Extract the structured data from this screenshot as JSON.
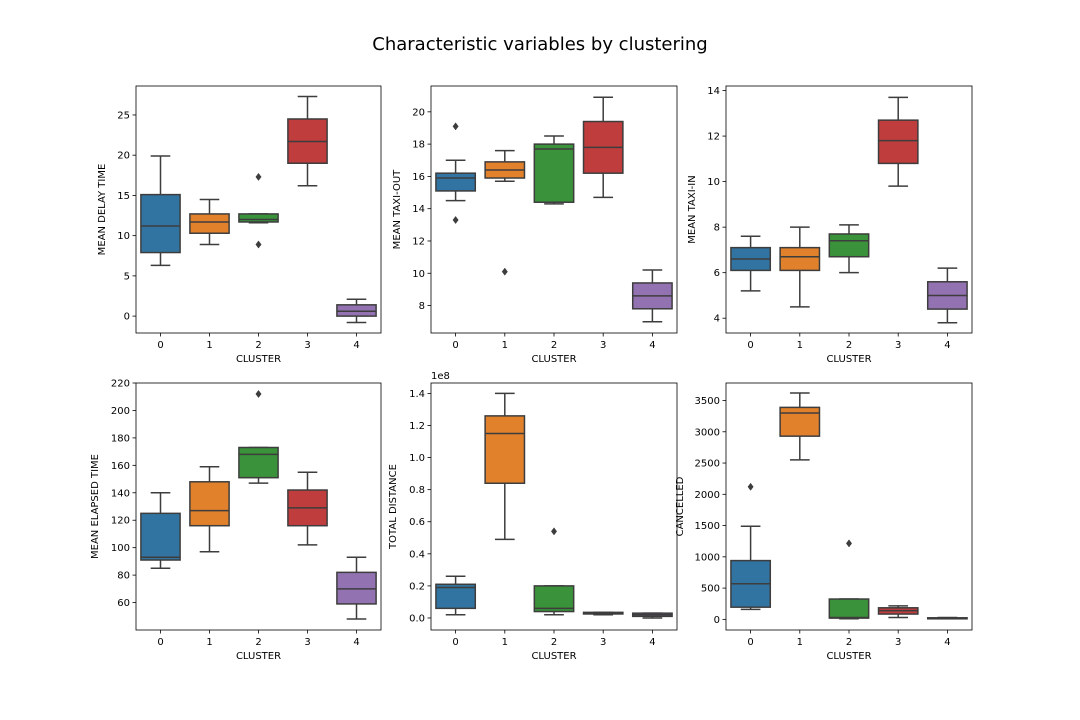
{
  "figure": {
    "title": "Characteristic variables by clustering"
  },
  "palette": [
    "#3274a1",
    "#e1812c",
    "#3a923a",
    "#c03d3e",
    "#9372b2"
  ],
  "chart_data": [
    {
      "type": "boxplot",
      "xlabel": "CLUSTER",
      "ylabel": "MEAN DELAY TIME",
      "categories": [
        "0",
        "1",
        "2",
        "3",
        "4"
      ],
      "ylim": [
        -2.1,
        28.6
      ],
      "yticks": [
        0,
        5,
        10,
        15,
        20,
        25
      ],
      "ytick_labels": [
        "0",
        "5",
        "10",
        "15",
        "20",
        "25"
      ],
      "offset_text": "",
      "boxes": [
        {
          "whislo": 6.3,
          "q1": 7.9,
          "med": 11.2,
          "q3": 15.1,
          "whishi": 19.9,
          "fliers": []
        },
        {
          "whislo": 8.9,
          "q1": 10.3,
          "med": 11.7,
          "q3": 12.7,
          "whishi": 14.5,
          "fliers": []
        },
        {
          "whislo": 11.6,
          "q1": 11.7,
          "med": 12.0,
          "q3": 12.7,
          "whishi": 12.7,
          "fliers": [
            17.3,
            8.9
          ]
        },
        {
          "whislo": 16.2,
          "q1": 19.0,
          "med": 21.7,
          "q3": 24.5,
          "whishi": 27.3,
          "fliers": []
        },
        {
          "whislo": -0.8,
          "q1": 0.0,
          "med": 0.6,
          "q3": 1.4,
          "whishi": 2.1,
          "fliers": []
        }
      ]
    },
    {
      "type": "boxplot",
      "xlabel": "CLUSTER",
      "ylabel": "MEAN TAXI-OUT",
      "categories": [
        "0",
        "1",
        "2",
        "3",
        "4"
      ],
      "ylim": [
        6.3,
        21.6
      ],
      "yticks": [
        8,
        10,
        12,
        14,
        16,
        18,
        20
      ],
      "ytick_labels": [
        "8",
        "10",
        "12",
        "14",
        "16",
        "18",
        "20"
      ],
      "offset_text": "",
      "boxes": [
        {
          "whislo": 14.5,
          "q1": 15.1,
          "med": 15.9,
          "q3": 16.2,
          "whishi": 17.0,
          "fliers": [
            19.1,
            13.3
          ]
        },
        {
          "whislo": 15.7,
          "q1": 15.9,
          "med": 16.4,
          "q3": 16.9,
          "whishi": 17.6,
          "fliers": [
            10.1
          ]
        },
        {
          "whislo": 14.3,
          "q1": 14.4,
          "med": 17.7,
          "q3": 18.0,
          "whishi": 18.5,
          "fliers": []
        },
        {
          "whislo": 14.7,
          "q1": 16.2,
          "med": 17.8,
          "q3": 19.4,
          "whishi": 20.9,
          "fliers": []
        },
        {
          "whislo": 7.0,
          "q1": 7.8,
          "med": 8.6,
          "q3": 9.4,
          "whishi": 10.2,
          "fliers": []
        }
      ]
    },
    {
      "type": "boxplot",
      "xlabel": "CLUSTER",
      "ylabel": "MEAN TAXI-IN",
      "categories": [
        "0",
        "1",
        "2",
        "3",
        "4"
      ],
      "ylim": [
        3.35,
        14.2
      ],
      "yticks": [
        4,
        6,
        8,
        10,
        12,
        14
      ],
      "ytick_labels": [
        "4",
        "6",
        "8",
        "10",
        "12",
        "14"
      ],
      "offset_text": "",
      "boxes": [
        {
          "whislo": 5.2,
          "q1": 6.1,
          "med": 6.6,
          "q3": 7.1,
          "whishi": 7.6,
          "fliers": []
        },
        {
          "whislo": 4.5,
          "q1": 6.1,
          "med": 6.7,
          "q3": 7.1,
          "whishi": 8.0,
          "fliers": []
        },
        {
          "whislo": 6.0,
          "q1": 6.7,
          "med": 7.4,
          "q3": 7.7,
          "whishi": 8.1,
          "fliers": []
        },
        {
          "whislo": 9.8,
          "q1": 10.8,
          "med": 11.8,
          "q3": 12.7,
          "whishi": 13.7,
          "fliers": []
        },
        {
          "whislo": 3.8,
          "q1": 4.4,
          "med": 5.0,
          "q3": 5.6,
          "whishi": 6.2,
          "fliers": []
        }
      ]
    },
    {
      "type": "boxplot",
      "xlabel": "CLUSTER",
      "ylabel": "MEAN ELAPSED TIME",
      "categories": [
        "0",
        "1",
        "2",
        "3",
        "4"
      ],
      "ylim": [
        40,
        220
      ],
      "yticks": [
        60,
        80,
        100,
        120,
        140,
        160,
        180,
        200,
        220
      ],
      "ytick_labels": [
        "60",
        "80",
        "100",
        "120",
        "140",
        "160",
        "180",
        "200",
        "220"
      ],
      "offset_text": "",
      "boxes": [
        {
          "whislo": 85,
          "q1": 91,
          "med": 93,
          "q3": 125,
          "whishi": 140,
          "fliers": []
        },
        {
          "whislo": 97,
          "q1": 116,
          "med": 127,
          "q3": 148,
          "whishi": 159,
          "fliers": []
        },
        {
          "whislo": 147,
          "q1": 151,
          "med": 168,
          "q3": 173,
          "whishi": 173,
          "fliers": [
            212
          ]
        },
        {
          "whislo": 102,
          "q1": 116,
          "med": 129,
          "q3": 142,
          "whishi": 155,
          "fliers": []
        },
        {
          "whislo": 48,
          "q1": 59,
          "med": 70,
          "q3": 82,
          "whishi": 93,
          "fliers": []
        }
      ]
    },
    {
      "type": "boxplot",
      "xlabel": "CLUSTER",
      "ylabel": "TOTAL DISTANCE",
      "categories": [
        "0",
        "1",
        "2",
        "3",
        "4"
      ],
      "ylim": [
        -0.075,
        1.465
      ],
      "yticks": [
        0.0,
        0.2,
        0.4,
        0.6,
        0.8,
        1.0,
        1.2,
        1.4
      ],
      "ytick_labels": [
        "0.0",
        "0.2",
        "0.4",
        "0.6",
        "0.8",
        "1.0",
        "1.2",
        "1.4"
      ],
      "offset_text": "1e8",
      "boxes": [
        {
          "whislo": 0.02,
          "q1": 0.06,
          "med": 0.19,
          "q3": 0.21,
          "whishi": 0.26,
          "fliers": []
        },
        {
          "whislo": 0.49,
          "q1": 0.84,
          "med": 1.15,
          "q3": 1.26,
          "whishi": 1.4,
          "fliers": []
        },
        {
          "whislo": 0.02,
          "q1": 0.04,
          "med": 0.06,
          "q3": 0.2,
          "whishi": 0.2,
          "fliers": [
            0.54
          ]
        },
        {
          "whislo": 0.02,
          "q1": 0.025,
          "med": 0.03,
          "q3": 0.035,
          "whishi": 0.035,
          "fliers": []
        },
        {
          "whislo": 0.0,
          "q1": 0.01,
          "med": 0.02,
          "q3": 0.03,
          "whishi": 0.03,
          "fliers": []
        }
      ]
    },
    {
      "type": "boxplot",
      "xlabel": "CLUSTER",
      "ylabel": "CANCELLED",
      "categories": [
        "0",
        "1",
        "2",
        "3",
        "4"
      ],
      "ylim": [
        -170,
        3780
      ],
      "yticks": [
        0,
        500,
        1000,
        1500,
        2000,
        2500,
        3000,
        3500
      ],
      "ytick_labels": [
        "0",
        "500",
        "1000",
        "1500",
        "2000",
        "2500",
        "3000",
        "3500"
      ],
      "offset_text": "",
      "boxes": [
        {
          "whislo": 160,
          "q1": 195,
          "med": 570,
          "q3": 940,
          "whishi": 1490,
          "fliers": [
            2120
          ]
        },
        {
          "whislo": 2550,
          "q1": 2930,
          "med": 3300,
          "q3": 3390,
          "whishi": 3620,
          "fliers": []
        },
        {
          "whislo": 10,
          "q1": 20,
          "med": 30,
          "q3": 325,
          "whishi": 325,
          "fliers": [
            1215
          ]
        },
        {
          "whislo": 30,
          "q1": 85,
          "med": 140,
          "q3": 185,
          "whishi": 215,
          "fliers": []
        },
        {
          "whislo": 10,
          "q1": 15,
          "med": 20,
          "q3": 25,
          "whishi": 30,
          "fliers": []
        }
      ]
    }
  ]
}
